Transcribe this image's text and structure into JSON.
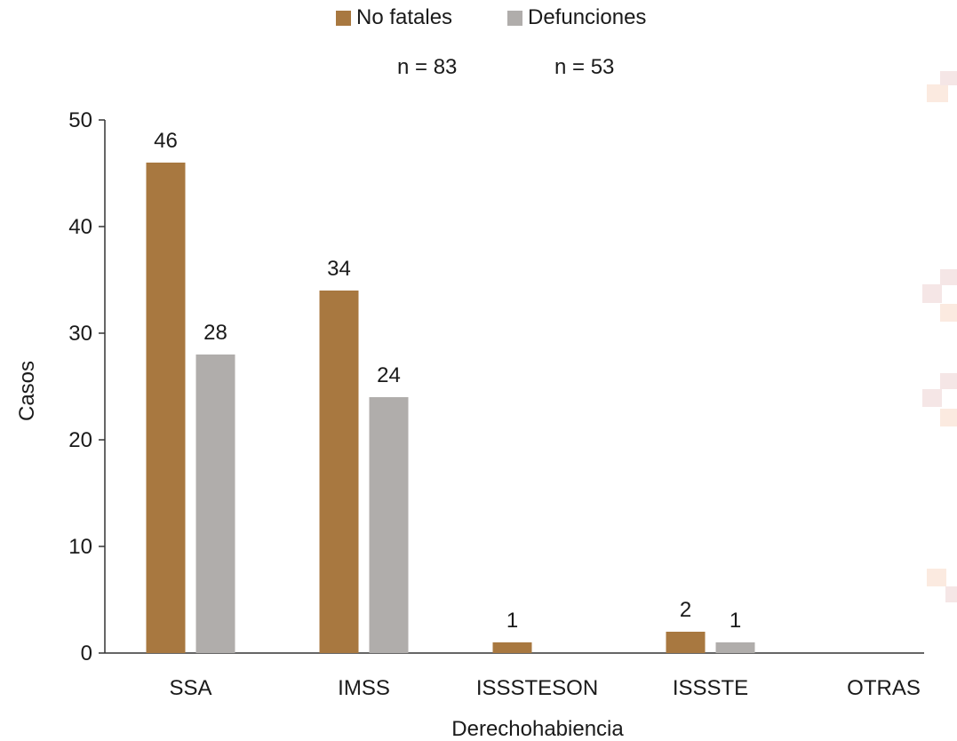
{
  "colors": {
    "no_fatales": "#A87840",
    "defunciones": "#B0ADAB",
    "axis": "#333333",
    "deco_a": "#F5E6E6",
    "deco_b": "#FBEAE0"
  },
  "legend": {
    "items": [
      {
        "label": "No fatales"
      },
      {
        "label": "Defunciones"
      }
    ]
  },
  "counts": {
    "no_fatales": "n = 83",
    "defunciones": "n = 53"
  },
  "chart_data": {
    "type": "bar",
    "categories": [
      "SSA",
      "IMSS",
      "ISSSTESON",
      "ISSSTE",
      "OTRAS"
    ],
    "series": [
      {
        "name": "No fatales",
        "values": [
          46,
          34,
          1,
          2,
          0
        ]
      },
      {
        "name": "Defunciones",
        "values": [
          28,
          24,
          0,
          1,
          0
        ]
      }
    ],
    "xlabel": "Derechohabiencia",
    "ylabel": "Casos",
    "ylim": [
      0,
      50
    ],
    "yticks": [
      0,
      10,
      20,
      30,
      40,
      50
    ],
    "grid": false,
    "legend_position": "top"
  }
}
